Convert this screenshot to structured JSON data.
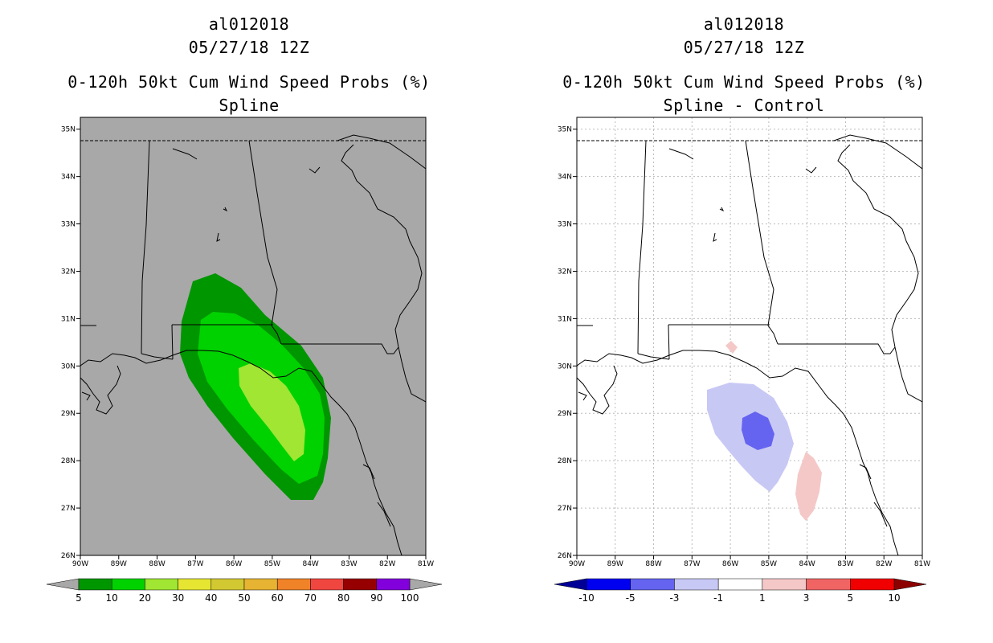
{
  "left_panel": {
    "storm_id": "al012018",
    "datetime": "05/27/18 12Z",
    "product": "0-120h 50kt Cum Wind Speed Probs (%)",
    "subtitle": "Spline",
    "background_color": "#a8a8a8",
    "colorbar": {
      "labels": [
        "5",
        "10",
        "20",
        "30",
        "40",
        "50",
        "60",
        "70",
        "80",
        "90",
        "100"
      ],
      "colors": [
        "#009600",
        "#00d200",
        "#a0e632",
        "#e6e632",
        "#d2c832",
        "#e6b432",
        "#f08228",
        "#f04640",
        "#960000",
        "#8200dc"
      ],
      "end_color": "#a8a8a8"
    }
  },
  "right_panel": {
    "storm_id": "al012018",
    "datetime": "05/27/18 12Z",
    "product": "0-120h 50kt Cum Wind Speed Probs (%)",
    "subtitle": "Spline - Control",
    "background_color": "#ffffff",
    "colorbar": {
      "labels": [
        "-10",
        "-5",
        "-3",
        "-1",
        "1",
        "3",
        "5",
        "10"
      ],
      "colors": [
        "#0000f0",
        "#6464f0",
        "#c8c8f5",
        "#ffffff",
        "#f5c8c8",
        "#f06464",
        "#f00000"
      ],
      "low_end_color": "#000096",
      "high_end_color": "#8c0000"
    }
  },
  "map": {
    "lat_labels": [
      "35N",
      "34N",
      "33N",
      "32N",
      "31N",
      "30N",
      "29N",
      "28N",
      "27N",
      "26N"
    ],
    "lon_labels": [
      "90W",
      "89W",
      "88W",
      "87W",
      "86W",
      "85W",
      "84W",
      "83W",
      "82W",
      "81W"
    ],
    "lat_range": [
      26,
      35.25
    ],
    "lon_range": [
      -90,
      -81
    ]
  }
}
